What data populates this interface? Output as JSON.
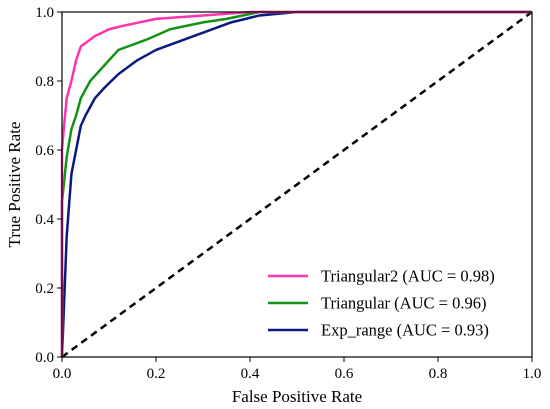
{
  "chart_data": {
    "type": "line",
    "title": "",
    "xlabel": "False Positive Rate",
    "ylabel": "True Positive Rate",
    "xlim": [
      0,
      1
    ],
    "ylim": [
      0,
      1
    ],
    "xticks": [
      "0.0",
      "0.2",
      "0.4",
      "0.6",
      "0.8",
      "1.0"
    ],
    "yticks": [
      "0.0",
      "0.2",
      "0.4",
      "0.6",
      "0.8",
      "1.0"
    ],
    "grid": false,
    "legend": "lower-right",
    "series": [
      {
        "name": "Triangular2 (AUC = 0.98)",
        "color": "#ff33b0",
        "x": [
          0,
          0,
          0.005,
          0.01,
          0.02,
          0.03,
          0.04,
          0.07,
          0.1,
          0.13,
          0.2,
          0.3,
          0.4,
          0.5,
          1.0
        ],
        "y": [
          0,
          0.6,
          0.68,
          0.75,
          0.8,
          0.86,
          0.9,
          0.93,
          0.95,
          0.96,
          0.98,
          0.99,
          1.0,
          1.0,
          1.0
        ]
      },
      {
        "name": "Triangular (AUC = 0.96)",
        "color": "#159215",
        "x": [
          0,
          0,
          0.01,
          0.02,
          0.03,
          0.04,
          0.06,
          0.08,
          0.12,
          0.18,
          0.23,
          0.3,
          0.35,
          0.42,
          0.5,
          1.0
        ],
        "y": [
          0,
          0.45,
          0.58,
          0.66,
          0.7,
          0.75,
          0.8,
          0.83,
          0.89,
          0.92,
          0.95,
          0.97,
          0.98,
          1.0,
          1.0,
          1.0
        ]
      },
      {
        "name": "Exp_range (AUC = 0.93)",
        "color": "#0a1a80",
        "x": [
          0,
          0.01,
          0.02,
          0.03,
          0.04,
          0.05,
          0.07,
          0.09,
          0.12,
          0.16,
          0.2,
          0.26,
          0.3,
          0.36,
          0.42,
          0.5,
          1.0
        ],
        "y": [
          0,
          0.35,
          0.53,
          0.6,
          0.67,
          0.7,
          0.75,
          0.78,
          0.82,
          0.86,
          0.89,
          0.92,
          0.94,
          0.97,
          0.99,
          1.0,
          1.0
        ]
      }
    ],
    "reference_line": {
      "style": "dashed",
      "color": "#000000",
      "x": [
        0,
        1
      ],
      "y": [
        0,
        1
      ]
    }
  }
}
